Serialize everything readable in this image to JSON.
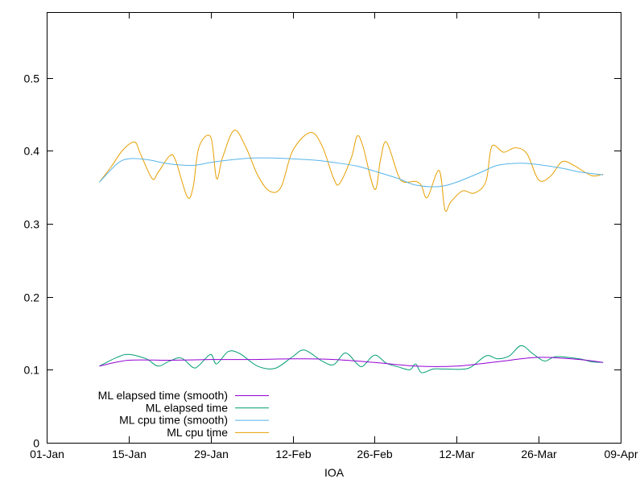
{
  "chart_data": {
    "type": "line",
    "title": "",
    "xlabel": "IOA",
    "ylabel": "",
    "grid": false,
    "legend_position": "bottom-left",
    "x_axis": {
      "type": "date",
      "range": [
        "2023-01-01",
        "2023-04-09"
      ],
      "tick_values": [
        "2023-01-01",
        "2023-01-15",
        "2023-01-29",
        "2023-02-12",
        "2023-02-26",
        "2023-03-12",
        "2023-03-26",
        "2023-04-09"
      ],
      "tick_labels": [
        "01-Jan",
        "15-Jan",
        "29-Jan",
        "12-Feb",
        "26-Feb",
        "12-Mar",
        "26-Mar",
        "09-Apr"
      ]
    },
    "y_axis": {
      "range": [
        0,
        0.59
      ],
      "tick_values": [
        0,
        0.1,
        0.2,
        0.3,
        0.4,
        0.5
      ],
      "tick_labels": [
        "0",
        "0.1",
        "0.2",
        "0.3",
        "0.4",
        "0.5"
      ]
    },
    "series": [
      {
        "name": "ML elapsed time (smooth)",
        "color": "#9400d3",
        "x": [
          "2023-01-10",
          "2023-01-15",
          "2023-01-22",
          "2023-01-29",
          "2023-02-05",
          "2023-02-12",
          "2023-02-19",
          "2023-02-26",
          "2023-03-05",
          "2023-03-12",
          "2023-03-19",
          "2023-03-26",
          "2023-04-02",
          "2023-04-06"
        ],
        "values": [
          0.105,
          0.113,
          0.113,
          0.114,
          0.114,
          0.115,
          0.114,
          0.11,
          0.105,
          0.105,
          0.111,
          0.117,
          0.114,
          0.11
        ]
      },
      {
        "name": "ML elapsed time",
        "color": "#009e73",
        "x": [
          "2023-01-10",
          "2023-01-13",
          "2023-01-15",
          "2023-01-18",
          "2023-01-20",
          "2023-01-22",
          "2023-01-24",
          "2023-01-26",
          "2023-01-27",
          "2023-01-29",
          "2023-01-30",
          "2023-02-01",
          "2023-02-03",
          "2023-02-06",
          "2023-02-09",
          "2023-02-12",
          "2023-02-14",
          "2023-02-17",
          "2023-02-19",
          "2023-02-21",
          "2023-02-23",
          "2023-02-24",
          "2023-02-26",
          "2023-02-28",
          "2023-03-02",
          "2023-03-04",
          "2023-03-05",
          "2023-03-06",
          "2023-03-08",
          "2023-03-10",
          "2023-03-14",
          "2023-03-17",
          "2023-03-19",
          "2023-03-21",
          "2023-03-23",
          "2023-03-25",
          "2023-03-27",
          "2023-03-29",
          "2023-04-02",
          "2023-04-04",
          "2023-04-06"
        ],
        "values": [
          0.105,
          0.117,
          0.121,
          0.115,
          0.105,
          0.112,
          0.116,
          0.103,
          0.106,
          0.121,
          0.108,
          0.125,
          0.122,
          0.105,
          0.102,
          0.118,
          0.127,
          0.112,
          0.107,
          0.123,
          0.108,
          0.105,
          0.12,
          0.109,
          0.104,
          0.1,
          0.108,
          0.096,
          0.101,
          0.101,
          0.102,
          0.119,
          0.115,
          0.119,
          0.133,
          0.122,
          0.112,
          0.118,
          0.115,
          0.111,
          0.11
        ]
      },
      {
        "name": "ML cpu time (smooth)",
        "color": "#56b4e9",
        "x": [
          "2023-01-10",
          "2023-01-13",
          "2023-01-15",
          "2023-01-18",
          "2023-01-22",
          "2023-01-26",
          "2023-01-29",
          "2023-02-02",
          "2023-02-05",
          "2023-02-09",
          "2023-02-12",
          "2023-02-16",
          "2023-02-19",
          "2023-02-23",
          "2023-02-26",
          "2023-03-02",
          "2023-03-05",
          "2023-03-09",
          "2023-03-12",
          "2023-03-16",
          "2023-03-19",
          "2023-03-23",
          "2023-03-26",
          "2023-03-30",
          "2023-04-02",
          "2023-04-06"
        ],
        "values": [
          0.357,
          0.382,
          0.389,
          0.388,
          0.382,
          0.38,
          0.384,
          0.388,
          0.39,
          0.39,
          0.389,
          0.387,
          0.384,
          0.379,
          0.372,
          0.362,
          0.353,
          0.351,
          0.357,
          0.37,
          0.38,
          0.383,
          0.381,
          0.376,
          0.371,
          0.367
        ]
      },
      {
        "name": "ML cpu time",
        "color": "#e69f00",
        "x": [
          "2023-01-10",
          "2023-01-12",
          "2023-01-14",
          "2023-01-16",
          "2023-01-17",
          "2023-01-19",
          "2023-01-20",
          "2023-01-22",
          "2023-01-23",
          "2023-01-25",
          "2023-01-26",
          "2023-01-27",
          "2023-01-29",
          "2023-01-30",
          "2023-01-31",
          "2023-02-02",
          "2023-02-04",
          "2023-02-06",
          "2023-02-08",
          "2023-02-10",
          "2023-02-12",
          "2023-02-15",
          "2023-02-17",
          "2023-02-19",
          "2023-02-20",
          "2023-02-22",
          "2023-02-23",
          "2023-02-24",
          "2023-02-26",
          "2023-02-27",
          "2023-02-28",
          "2023-03-02",
          "2023-03-03",
          "2023-03-05",
          "2023-03-06",
          "2023-03-07",
          "2023-03-09",
          "2023-03-10",
          "2023-03-11",
          "2023-03-13",
          "2023-03-15",
          "2023-03-17",
          "2023-03-18",
          "2023-03-20",
          "2023-03-22",
          "2023-03-24",
          "2023-03-26",
          "2023-03-28",
          "2023-03-30",
          "2023-04-01",
          "2023-04-04",
          "2023-04-06"
        ],
        "values": [
          0.357,
          0.378,
          0.401,
          0.412,
          0.396,
          0.362,
          0.37,
          0.393,
          0.387,
          0.337,
          0.35,
          0.405,
          0.419,
          0.362,
          0.39,
          0.428,
          0.405,
          0.367,
          0.345,
          0.35,
          0.4,
          0.425,
          0.407,
          0.362,
          0.355,
          0.39,
          0.42,
          0.406,
          0.347,
          0.388,
          0.412,
          0.367,
          0.357,
          0.358,
          0.352,
          0.336,
          0.373,
          0.319,
          0.33,
          0.345,
          0.342,
          0.358,
          0.406,
          0.398,
          0.404,
          0.396,
          0.36,
          0.365,
          0.385,
          0.38,
          0.366,
          0.368
        ]
      }
    ]
  }
}
